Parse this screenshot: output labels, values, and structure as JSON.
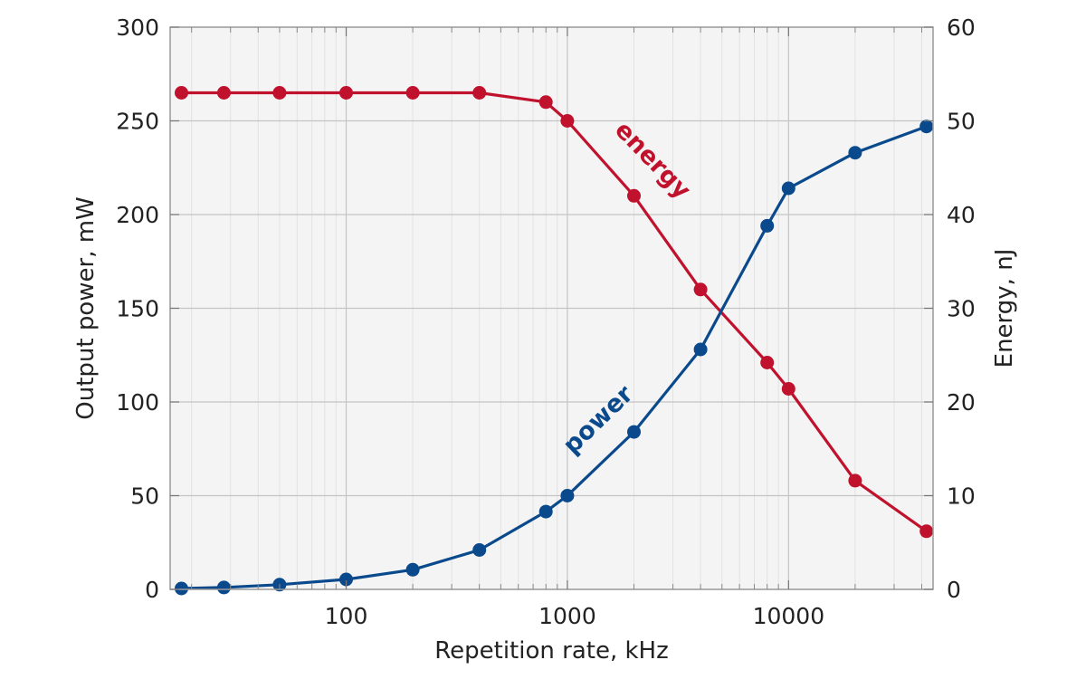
{
  "chart_data": {
    "type": "line",
    "x_axis": {
      "label": "Repetition rate, kHz",
      "scale": "log",
      "range": [
        16,
        45000
      ],
      "ticks": [
        100,
        1000,
        10000
      ],
      "tick_labels": [
        "100",
        "1000",
        "10000"
      ]
    },
    "y_left": {
      "label": "Output power, mW",
      "range": [
        0,
        300
      ],
      "ticks": [
        0,
        50,
        100,
        150,
        200,
        250,
        300
      ],
      "tick_labels": [
        "0",
        "50",
        "100",
        "150",
        "200",
        "250",
        "300"
      ]
    },
    "y_right": {
      "label": "Energy, nJ",
      "range": [
        0,
        60
      ],
      "ticks": [
        0,
        10,
        20,
        30,
        40,
        50,
        60
      ],
      "tick_labels": [
        "0",
        "10",
        "20",
        "30",
        "40",
        "50",
        "60"
      ]
    },
    "grid": true,
    "series": [
      {
        "name": "energy",
        "axis": "right",
        "color": "#c0122d",
        "x": [
          18,
          28,
          50,
          100,
          200,
          400,
          800,
          1000,
          2000,
          4000,
          8000,
          10000,
          20000,
          42000
        ],
        "values": [
          53,
          53,
          53,
          53,
          53,
          53,
          52,
          50,
          42,
          32,
          24.2,
          21.4,
          11.6,
          6.2
        ]
      },
      {
        "name": "power",
        "axis": "left",
        "color": "#0a4a8c",
        "x": [
          18,
          28,
          50,
          100,
          200,
          400,
          800,
          1000,
          2000,
          4000,
          8000,
          10000,
          20000,
          42000
        ],
        "values": [
          0.5,
          1,
          2.5,
          5.3,
          10.5,
          21,
          41.5,
          50,
          84,
          128,
          194,
          214,
          233,
          247
        ]
      }
    ],
    "annotations": [
      {
        "text": "energy",
        "color": "#c0122d"
      },
      {
        "text": "power",
        "color": "#0a4a8c"
      }
    ]
  }
}
